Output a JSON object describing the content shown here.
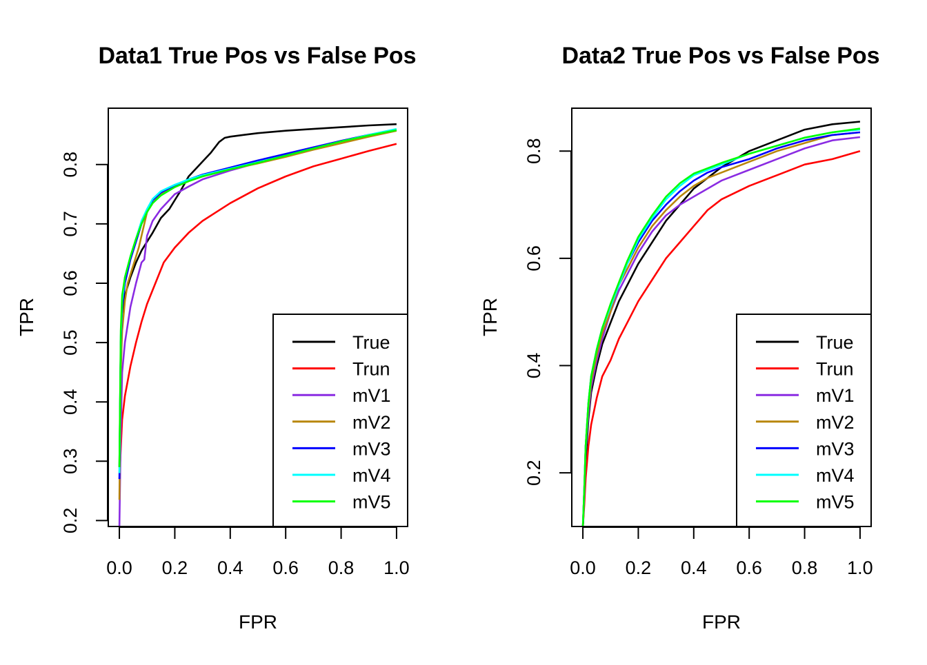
{
  "chart_data": [
    {
      "type": "line",
      "title": "Data1 True Pos vs False Pos",
      "xlabel": "FPR",
      "ylabel": "TPR",
      "xlim": [
        0.0,
        1.0
      ],
      "ylim": [
        0.19,
        0.895
      ],
      "xticks": [
        "0.0",
        "0.2",
        "0.4",
        "0.6",
        "0.8",
        "1.0"
      ],
      "yticks": [
        "0.2",
        "0.3",
        "0.4",
        "0.5",
        "0.6",
        "0.7",
        "0.8"
      ],
      "legend_position": "bottom-right",
      "series": [
        {
          "name": "True",
          "color": "#000000",
          "x": [
            0,
            0.005,
            0.01,
            0.02,
            0.04,
            0.06,
            0.08,
            0.1,
            0.12,
            0.15,
            0.18,
            0.2,
            0.22,
            0.25,
            0.28,
            0.3,
            0.33,
            0.36,
            0.38,
            0.4,
            0.45,
            0.5,
            0.6,
            0.7,
            0.8,
            0.9,
            1.0
          ],
          "y": [
            0.29,
            0.5,
            0.55,
            0.58,
            0.61,
            0.635,
            0.655,
            0.67,
            0.685,
            0.71,
            0.725,
            0.74,
            0.755,
            0.78,
            0.795,
            0.805,
            0.82,
            0.838,
            0.845,
            0.847,
            0.85,
            0.853,
            0.857,
            0.86,
            0.863,
            0.866,
            0.868
          ]
        },
        {
          "name": "Trun",
          "color": "#ff0000",
          "x": [
            0,
            0.005,
            0.01,
            0.02,
            0.04,
            0.06,
            0.08,
            0.1,
            0.13,
            0.16,
            0.2,
            0.25,
            0.3,
            0.35,
            0.4,
            0.5,
            0.6,
            0.7,
            0.8,
            0.9,
            1.0
          ],
          "y": [
            0.27,
            0.32,
            0.37,
            0.41,
            0.46,
            0.5,
            0.535,
            0.565,
            0.6,
            0.635,
            0.66,
            0.685,
            0.705,
            0.72,
            0.735,
            0.76,
            0.78,
            0.797,
            0.81,
            0.823,
            0.835
          ]
        },
        {
          "name": "mV1",
          "color": "#8a2be2",
          "x": [
            0,
            0.005,
            0.01,
            0.02,
            0.04,
            0.06,
            0.08,
            0.09,
            0.1,
            0.12,
            0.15,
            0.18,
            0.2,
            0.25,
            0.3,
            0.4,
            0.5,
            0.6,
            0.7,
            0.8,
            0.9,
            1.0
          ],
          "y": [
            0.19,
            0.35,
            0.45,
            0.5,
            0.56,
            0.6,
            0.635,
            0.64,
            0.68,
            0.705,
            0.725,
            0.74,
            0.75,
            0.763,
            0.775,
            0.79,
            0.803,
            0.815,
            0.828,
            0.84,
            0.85,
            0.858
          ]
        },
        {
          "name": "mV2",
          "color": "#b8860b",
          "x": [
            0,
            0.005,
            0.01,
            0.02,
            0.03,
            0.05,
            0.07,
            0.08,
            0.09,
            0.1,
            0.12,
            0.15,
            0.2,
            0.25,
            0.3,
            0.4,
            0.5,
            0.6,
            0.7,
            0.8,
            0.9,
            1.0
          ],
          "y": [
            0.235,
            0.45,
            0.52,
            0.57,
            0.6,
            0.63,
            0.66,
            0.68,
            0.7,
            0.72,
            0.735,
            0.75,
            0.762,
            0.772,
            0.78,
            0.792,
            0.802,
            0.813,
            0.825,
            0.836,
            0.847,
            0.857
          ]
        },
        {
          "name": "mV3",
          "color": "#0000ff",
          "x": [
            0,
            0.005,
            0.01,
            0.02,
            0.04,
            0.06,
            0.08,
            0.1,
            0.12,
            0.15,
            0.2,
            0.25,
            0.3,
            0.4,
            0.5,
            0.6,
            0.7,
            0.8,
            0.9,
            1.0
          ],
          "y": [
            0.27,
            0.5,
            0.56,
            0.6,
            0.64,
            0.67,
            0.7,
            0.72,
            0.74,
            0.753,
            0.765,
            0.775,
            0.783,
            0.795,
            0.807,
            0.818,
            0.829,
            0.84,
            0.85,
            0.859
          ]
        },
        {
          "name": "mV4",
          "color": "#00ffff",
          "x": [
            0,
            0.005,
            0.01,
            0.02,
            0.04,
            0.06,
            0.08,
            0.1,
            0.12,
            0.15,
            0.2,
            0.25,
            0.3,
            0.4,
            0.5,
            0.6,
            0.7,
            0.8,
            0.9,
            1.0
          ],
          "y": [
            0.28,
            0.51,
            0.57,
            0.61,
            0.645,
            0.675,
            0.705,
            0.725,
            0.742,
            0.755,
            0.766,
            0.775,
            0.782,
            0.793,
            0.804,
            0.815,
            0.827,
            0.839,
            0.85,
            0.86
          ]
        },
        {
          "name": "mV5",
          "color": "#00ff00",
          "x": [
            0,
            0.005,
            0.01,
            0.02,
            0.04,
            0.06,
            0.08,
            0.1,
            0.12,
            0.15,
            0.2,
            0.25,
            0.3,
            0.4,
            0.5,
            0.6,
            0.7,
            0.8,
            0.9,
            1.0
          ],
          "y": [
            0.29,
            0.52,
            0.58,
            0.61,
            0.645,
            0.675,
            0.7,
            0.72,
            0.735,
            0.748,
            0.762,
            0.772,
            0.78,
            0.792,
            0.803,
            0.815,
            0.827,
            0.839,
            0.849,
            0.858
          ]
        }
      ]
    },
    {
      "type": "line",
      "title": "Data2 True Pos vs False Pos",
      "xlabel": "FPR",
      "ylabel": "TPR",
      "xlim": [
        0.0,
        1.0
      ],
      "ylim": [
        0.1,
        0.88
      ],
      "xticks": [
        "0.0",
        "0.2",
        "0.4",
        "0.6",
        "0.8",
        "1.0"
      ],
      "yticks": [
        "0.2",
        "0.4",
        "0.6",
        "0.8"
      ],
      "legend_position": "bottom-right",
      "series": [
        {
          "name": "True",
          "color": "#000000",
          "x": [
            0,
            0.005,
            0.01,
            0.02,
            0.03,
            0.05,
            0.07,
            0.1,
            0.13,
            0.16,
            0.2,
            0.25,
            0.3,
            0.35,
            0.4,
            0.45,
            0.5,
            0.6,
            0.7,
            0.8,
            0.9,
            1.0
          ],
          "y": [
            0.1,
            0.15,
            0.22,
            0.3,
            0.35,
            0.4,
            0.44,
            0.48,
            0.52,
            0.55,
            0.59,
            0.63,
            0.67,
            0.7,
            0.73,
            0.75,
            0.77,
            0.8,
            0.82,
            0.84,
            0.85,
            0.855
          ]
        },
        {
          "name": "Trun",
          "color": "#ff0000",
          "x": [
            0,
            0.005,
            0.01,
            0.02,
            0.03,
            0.05,
            0.07,
            0.1,
            0.13,
            0.16,
            0.2,
            0.25,
            0.3,
            0.35,
            0.4,
            0.45,
            0.5,
            0.6,
            0.7,
            0.8,
            0.9,
            1.0
          ],
          "y": [
            0.1,
            0.14,
            0.19,
            0.25,
            0.29,
            0.34,
            0.38,
            0.41,
            0.45,
            0.48,
            0.52,
            0.56,
            0.6,
            0.63,
            0.66,
            0.69,
            0.71,
            0.735,
            0.755,
            0.775,
            0.785,
            0.8
          ]
        },
        {
          "name": "mV1",
          "color": "#8a2be2",
          "x": [
            0,
            0.005,
            0.01,
            0.02,
            0.03,
            0.05,
            0.07,
            0.1,
            0.13,
            0.16,
            0.2,
            0.25,
            0.3,
            0.35,
            0.4,
            0.45,
            0.5,
            0.6,
            0.7,
            0.8,
            0.9,
            1.0
          ],
          "y": [
            0.1,
            0.16,
            0.24,
            0.31,
            0.36,
            0.41,
            0.45,
            0.5,
            0.54,
            0.57,
            0.61,
            0.65,
            0.68,
            0.7,
            0.715,
            0.73,
            0.745,
            0.765,
            0.785,
            0.805,
            0.82,
            0.826
          ]
        },
        {
          "name": "mV2",
          "color": "#b8860b",
          "x": [
            0,
            0.005,
            0.01,
            0.02,
            0.03,
            0.05,
            0.07,
            0.1,
            0.13,
            0.16,
            0.2,
            0.25,
            0.3,
            0.35,
            0.4,
            0.45,
            0.5,
            0.6,
            0.7,
            0.8,
            0.9,
            1.0
          ],
          "y": [
            0.1,
            0.17,
            0.25,
            0.32,
            0.37,
            0.42,
            0.46,
            0.5,
            0.55,
            0.58,
            0.62,
            0.66,
            0.69,
            0.715,
            0.735,
            0.75,
            0.76,
            0.78,
            0.8,
            0.815,
            0.83,
            0.835
          ]
        },
        {
          "name": "mV3",
          "color": "#0000ff",
          "x": [
            0,
            0.005,
            0.01,
            0.02,
            0.03,
            0.05,
            0.07,
            0.1,
            0.13,
            0.16,
            0.2,
            0.25,
            0.3,
            0.35,
            0.4,
            0.45,
            0.5,
            0.6,
            0.7,
            0.8,
            0.9,
            1.0
          ],
          "y": [
            0.1,
            0.17,
            0.25,
            0.33,
            0.38,
            0.43,
            0.47,
            0.51,
            0.55,
            0.59,
            0.63,
            0.67,
            0.7,
            0.725,
            0.745,
            0.76,
            0.77,
            0.785,
            0.805,
            0.82,
            0.83,
            0.835
          ]
        },
        {
          "name": "mV4",
          "color": "#00ffff",
          "x": [
            0,
            0.005,
            0.01,
            0.02,
            0.03,
            0.05,
            0.07,
            0.1,
            0.13,
            0.16,
            0.2,
            0.25,
            0.3,
            0.35,
            0.4,
            0.45,
            0.5,
            0.6,
            0.7,
            0.8,
            0.9,
            1.0
          ],
          "y": [
            0.1,
            0.17,
            0.25,
            0.33,
            0.38,
            0.43,
            0.47,
            0.51,
            0.55,
            0.59,
            0.635,
            0.675,
            0.71,
            0.735,
            0.755,
            0.765,
            0.775,
            0.795,
            0.81,
            0.825,
            0.835,
            0.84
          ]
        },
        {
          "name": "mV5",
          "color": "#00ff00",
          "x": [
            0,
            0.005,
            0.01,
            0.02,
            0.03,
            0.05,
            0.07,
            0.1,
            0.13,
            0.16,
            0.2,
            0.25,
            0.3,
            0.35,
            0.4,
            0.45,
            0.5,
            0.6,
            0.7,
            0.8,
            0.9,
            1.0
          ],
          "y": [
            0.1,
            0.17,
            0.25,
            0.33,
            0.38,
            0.43,
            0.47,
            0.515,
            0.555,
            0.595,
            0.64,
            0.68,
            0.715,
            0.74,
            0.758,
            0.768,
            0.778,
            0.795,
            0.81,
            0.825,
            0.835,
            0.842
          ]
        }
      ]
    }
  ]
}
